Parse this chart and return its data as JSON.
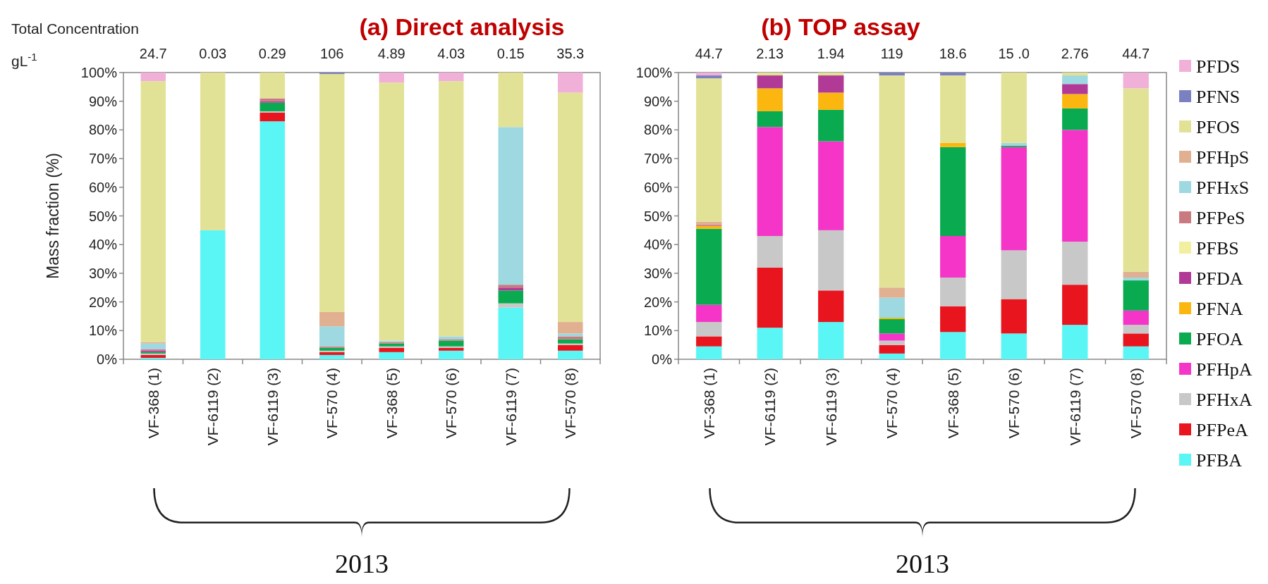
{
  "chart_data": [
    {
      "type": "bar",
      "title": "(a) Direct analysis",
      "ylabel": "Mass fraction (%)",
      "stacked": true,
      "legend": false,
      "grid": false,
      "categories": [
        "VF-368 (1)",
        "VF-6119 (2)",
        "VF-6119 (3)",
        "VF-570 (4)",
        "VF-368 (5)",
        "VF-570 (6)",
        "VF-6119 (7)",
        "VF-570 (8)"
      ],
      "ylim": [
        0,
        100
      ],
      "yticks": [
        {
          "value": 0,
          "label": "0%"
        },
        {
          "value": 10,
          "label": "10%"
        },
        {
          "value": 20,
          "label": "20%"
        },
        {
          "value": 30,
          "label": "30%"
        },
        {
          "value": 40,
          "label": "40%"
        },
        {
          "value": 50,
          "label": "50%"
        },
        {
          "value": 60,
          "label": "60%"
        },
        {
          "value": 70,
          "label": "70%"
        },
        {
          "value": 80,
          "label": "80%"
        },
        {
          "value": 90,
          "label": "90%"
        },
        {
          "value": 100,
          "label": "100%"
        }
      ],
      "annotations": [
        "Total Concentration gL$^{-1}$",
        "2013",
        "24.7",
        "0.03",
        "0.29",
        "106",
        "4.89",
        "4.03",
        "0.15",
        "35.3"
      ],
      "series": [
        {
          "color": "#5af5f5",
          "values": [
            0.5,
            45,
            83,
            1.5,
            2.5,
            3,
            18,
            3
          ]
        },
        {
          "color": "#e8141e",
          "values": [
            1,
            0,
            3,
            1,
            1.5,
            1,
            0,
            2
          ]
        },
        {
          "color": "#c8c8c8",
          "values": [
            0.5,
            0,
            0.5,
            0.5,
            0.5,
            0.5,
            1.5,
            0.5
          ]
        },
        {
          "color": "#f535c8",
          "values": [
            0,
            0,
            0,
            0,
            0,
            0,
            0,
            0
          ]
        },
        {
          "color": "#0aab50",
          "values": [
            0.5,
            0,
            3,
            1,
            1,
            2,
            4.5,
            1.5
          ]
        },
        {
          "color": "#fbb710",
          "values": [
            0,
            0,
            0,
            0,
            0,
            0,
            0,
            0
          ]
        },
        {
          "color": "#b03a95",
          "values": [
            0.5,
            0,
            0.5,
            0,
            0,
            0,
            1,
            0
          ]
        },
        {
          "color": "#f0f0a0",
          "values": [
            0,
            0,
            0,
            0,
            0,
            0,
            0,
            0
          ]
        },
        {
          "color": "#c87a80",
          "values": [
            0.5,
            0,
            1,
            0.5,
            0.5,
            0.5,
            1,
            1
          ]
        },
        {
          "color": "#9ed8e0",
          "values": [
            2,
            0,
            0,
            7,
            0.5,
            1,
            55,
            1
          ]
        },
        {
          "color": "#e0b090",
          "values": [
            0.5,
            0,
            0,
            5,
            0,
            0,
            0,
            4
          ]
        },
        {
          "color": "#e2e296",
          "values": [
            91,
            55,
            9,
            83,
            90,
            89,
            19,
            80
          ]
        },
        {
          "color": "#7a80c0",
          "values": [
            0,
            0,
            0,
            0.5,
            0,
            0,
            0,
            0
          ]
        },
        {
          "color": "#f0b0d8",
          "values": [
            3,
            0,
            0,
            0,
            3.5,
            3,
            0,
            7
          ]
        }
      ]
    },
    {
      "type": "bar",
      "title": "(b) TOP assay",
      "stacked": true,
      "legend": "right",
      "grid": false,
      "categories": [
        "VF-368 (1)",
        "VF-6119 (2)",
        "VF-6119 (3)",
        "VF-570 (4)",
        "VF-368 (5)",
        "VF-570 (6)",
        "VF-6119 (7)",
        "VF-570 (8)"
      ],
      "ylim": [
        0,
        100
      ],
      "yticks": [
        {
          "value": 0,
          "label": "0%"
        },
        {
          "value": 10,
          "label": "10%"
        },
        {
          "value": 20,
          "label": "20%"
        },
        {
          "value": 30,
          "label": "30%"
        },
        {
          "value": 40,
          "label": "40%"
        },
        {
          "value": 50,
          "label": "50%"
        },
        {
          "value": 60,
          "label": "60%"
        },
        {
          "value": 70,
          "label": "70%"
        },
        {
          "value": 80,
          "label": "80%"
        },
        {
          "value": 90,
          "label": "90%"
        },
        {
          "value": 100,
          "label": "100%"
        }
      ],
      "annotations": [
        "2013",
        "44.7",
        "2.13",
        "1.94",
        "119",
        "18.6",
        "15 .0",
        "2.76",
        "44.7"
      ],
      "series": [
        {
          "name": "PFBA",
          "color": "#5af5f5",
          "values": [
            4.5,
            11,
            13,
            2,
            9.5,
            9,
            12,
            4.5
          ]
        },
        {
          "name": "PFPeA",
          "color": "#e8141e",
          "values": [
            3.5,
            21,
            11,
            3,
            9,
            12,
            14,
            4.5
          ]
        },
        {
          "name": "PFHxA",
          "color": "#c8c8c8",
          "values": [
            5,
            11,
            21,
            1.5,
            10,
            17,
            15,
            3
          ]
        },
        {
          "name": "PFHpA",
          "color": "#f535c8",
          "values": [
            6,
            38,
            31,
            2.5,
            14.5,
            36,
            39,
            5
          ]
        },
        {
          "name": "PFOA",
          "color": "#0aab50",
          "values": [
            26.5,
            5.5,
            11,
            5,
            31,
            0.5,
            7.5,
            10.5
          ]
        },
        {
          "name": "PFNA",
          "color": "#fbb710",
          "values": [
            1,
            8,
            6,
            0.5,
            1.5,
            0,
            5,
            0
          ]
        },
        {
          "name": "PFDA",
          "color": "#b03a95",
          "values": [
            0,
            4.5,
            6,
            0,
            0,
            0,
            3.5,
            0
          ]
        },
        {
          "name": "PFBS",
          "color": "#f0f0a0",
          "values": [
            0,
            0,
            0,
            0,
            0,
            0,
            0,
            0
          ]
        },
        {
          "name": "PFPeS",
          "color": "#c87a80",
          "values": [
            0.5,
            0,
            0,
            0,
            0,
            0,
            0,
            0
          ]
        },
        {
          "name": "PFHxS",
          "color": "#9ed8e0",
          "values": [
            0,
            0,
            0,
            7,
            0,
            1,
            3,
            1
          ]
        },
        {
          "name": "PFHpS",
          "color": "#e0b090",
          "values": [
            1,
            0,
            0,
            3.5,
            0,
            0,
            0,
            2
          ]
        },
        {
          "name": "PFOS",
          "color": "#e2e296",
          "values": [
            50,
            1,
            1,
            74,
            23.5,
            24.5,
            1,
            64
          ]
        },
        {
          "name": "PFNS",
          "color": "#7a80c0",
          "values": [
            1,
            0,
            0,
            1,
            1,
            0,
            0,
            0
          ]
        },
        {
          "name": "PFDS",
          "color": "#f0b0d8",
          "values": [
            1,
            0,
            0,
            0,
            0,
            0,
            0,
            5.5
          ]
        }
      ]
    }
  ]
}
